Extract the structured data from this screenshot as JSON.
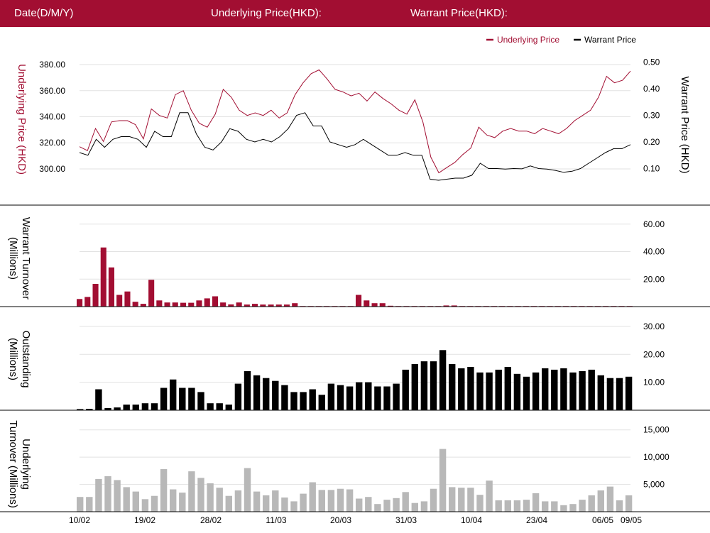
{
  "header": {
    "date_label": "Date(D/M/Y)",
    "underlying_label": "Underlying Price(HKD):",
    "warrant_label": "Warrant Price(HKD):"
  },
  "colors": {
    "header_bg": "#a20e32",
    "underlying": "#a20e32",
    "warrant": "#000000",
    "underlying_turnover": "#b8b8b8",
    "grid": "#e2e2e2"
  },
  "chart_data": [
    {
      "type": "line",
      "title": "",
      "legend": {
        "placement": "top-right",
        "entries": [
          "Underlying Price",
          "Warrant Price"
        ]
      },
      "x_tick_labels": [
        "10/02",
        "19/02",
        "28/02",
        "11/03",
        "20/03",
        "31/03",
        "10/04",
        "23/04",
        "06/05",
        "09/05"
      ],
      "left_axis": {
        "label": "Underlying Price (HKD)",
        "ticks": [
          "380.00",
          "360.00",
          "340.00",
          "320.00",
          "300.00"
        ],
        "ylim": [
          288,
          386
        ]
      },
      "right_axis": {
        "label": "Warrant  Price (HKD)",
        "ticks": [
          "0.50",
          "0.40",
          "0.30",
          "0.20",
          "0.10"
        ],
        "ylim": [
          0.04,
          0.52
        ]
      },
      "grid": true,
      "series": [
        {
          "name": "Underlying Price",
          "axis": "left",
          "values": [
            317,
            314,
            331,
            321,
            336,
            337,
            337,
            334,
            323,
            346,
            341,
            339,
            357,
            360,
            345,
            335,
            332,
            342,
            361,
            355,
            345,
            341,
            343,
            341,
            345,
            339,
            343,
            357,
            366,
            373,
            376,
            369,
            361,
            359,
            356,
            358,
            352,
            359,
            354,
            350,
            345,
            342,
            353,
            336,
            309,
            297,
            301,
            305,
            311,
            316,
            332,
            326,
            324,
            329,
            331,
            329,
            329,
            327,
            331,
            329,
            327,
            331,
            337,
            341,
            345,
            355,
            371,
            366,
            368,
            375
          ],
          "points_x": [
            0,
            1,
            2,
            3,
            4,
            5,
            6,
            7,
            8,
            9,
            10,
            11,
            12,
            13,
            14,
            15,
            16,
            17,
            18,
            19,
            20,
            21,
            22,
            23,
            24,
            25,
            26,
            27,
            28,
            29,
            30,
            31,
            32,
            33,
            34,
            35,
            36,
            37,
            38,
            39,
            40,
            41,
            42,
            43,
            44,
            45,
            46,
            47,
            48,
            49,
            50,
            51,
            52,
            53,
            54,
            55,
            56,
            57,
            58,
            59,
            60,
            61,
            62,
            63,
            64,
            65,
            66,
            67,
            68,
            69
          ]
        },
        {
          "name": "Warrant Price",
          "axis": "right",
          "values": [
            0.16,
            0.15,
            0.21,
            0.18,
            0.21,
            0.22,
            0.22,
            0.21,
            0.18,
            0.24,
            0.22,
            0.22,
            0.31,
            0.31,
            0.23,
            0.18,
            0.17,
            0.2,
            0.25,
            0.24,
            0.21,
            0.2,
            0.21,
            0.2,
            0.22,
            0.25,
            0.3,
            0.31,
            0.26,
            0.26,
            0.2,
            0.19,
            0.18,
            0.19,
            0.21,
            0.19,
            0.17,
            0.15,
            0.15,
            0.16,
            0.15,
            0.15,
            0.06,
            0.056,
            0.06,
            0.064,
            0.064,
            0.075,
            0.12,
            0.1,
            0.1,
            0.098,
            0.1,
            0.099,
            0.11,
            0.1,
            0.098,
            0.093,
            0.086,
            0.09,
            0.1,
            0.12,
            0.14,
            0.16,
            0.175,
            0.175,
            0.19
          ],
          "points_x": [
            0,
            1,
            2,
            3,
            4,
            5,
            6,
            7,
            8,
            9,
            10,
            11,
            12,
            13,
            14,
            15,
            16,
            17,
            18,
            19,
            20,
            21,
            22,
            23,
            24,
            25,
            26,
            27,
            28,
            29,
            30,
            31,
            32,
            33,
            34,
            35,
            36,
            37,
            38,
            39,
            40,
            41,
            42,
            43,
            44,
            45,
            46,
            47,
            48,
            49,
            50,
            51,
            52,
            53,
            54,
            55,
            56,
            57,
            58,
            59,
            60,
            61,
            62,
            63,
            64,
            65,
            66
          ]
        }
      ]
    },
    {
      "type": "bar",
      "ylabel": "Warrant  Turnover (Millions)",
      "ticks": [
        "60.00",
        "40.00",
        "20.00"
      ],
      "ylim": [
        0,
        64
      ],
      "grid": true,
      "values": [
        5.5,
        7,
        16.5,
        43,
        28.5,
        8.5,
        11,
        3.5,
        2,
        19.5,
        4.5,
        3,
        3,
        2.8,
        2.8,
        4.5,
        6,
        7.5,
        3,
        1.6,
        3,
        1.5,
        2,
        1.5,
        1.5,
        1.5,
        1.5,
        2.5,
        0.4,
        0.4,
        0.4,
        0.4,
        0.4,
        0.4,
        0.4,
        8.5,
        4.5,
        2.5,
        2.5,
        0.6,
        0.4,
        0.4,
        0.4,
        0.4,
        0.4,
        0.4,
        0.8,
        0.8,
        0.4,
        0.4,
        0.4,
        0.4,
        0.4,
        0.4,
        0.4,
        0.4,
        0.4,
        0.4,
        0.4,
        0.4,
        0.4,
        0.4,
        0.4,
        0.4,
        0.4,
        0.4,
        0.4,
        0.4,
        0.4,
        0.4
      ]
    },
    {
      "type": "bar",
      "ylabel": "Outstanding (Millions)",
      "ticks": [
        "30.00",
        "20.00",
        "10.00"
      ],
      "ylim": [
        0,
        32
      ],
      "grid": true,
      "values": [
        0.4,
        0.5,
        7.5,
        0.8,
        1,
        2,
        2,
        2.5,
        2.5,
        8,
        11,
        8,
        8,
        6.5,
        2.5,
        2.5,
        2,
        9.5,
        14,
        12.5,
        11.5,
        10.5,
        9,
        6.5,
        6.5,
        7.5,
        5.5,
        9.5,
        9,
        8.5,
        10,
        10,
        8.5,
        8.5,
        9.5,
        14.5,
        16.5,
        17.5,
        17.5,
        21.5,
        16.5,
        15,
        15.5,
        13.5,
        13.5,
        14.5,
        15.5,
        13,
        12,
        13.5,
        15,
        14.5,
        15,
        13.5,
        14,
        14.5,
        12.5,
        11.5,
        11.5,
        12
      ]
    },
    {
      "type": "bar",
      "ylabel": "Underlying Turnover (Millions)",
      "ticks": [
        "15,000",
        "10,000",
        "5,000"
      ],
      "ylim": [
        0,
        16000
      ],
      "grid": true,
      "values": [
        2700,
        2700,
        6000,
        6500,
        5800,
        4500,
        3700,
        2300,
        2900,
        7800,
        4100,
        3500,
        7400,
        6200,
        5200,
        4400,
        2900,
        3900,
        8000,
        3700,
        3000,
        3900,
        2600,
        1900,
        3300,
        5400,
        4000,
        4000,
        4200,
        4100,
        2400,
        2700,
        1400,
        2200,
        2500,
        3600,
        1600,
        1900,
        4200,
        11500,
        4500,
        4400,
        4400,
        3100,
        5700,
        2100,
        2100,
        2100,
        2200,
        3400,
        1900,
        1900,
        1200,
        1400,
        2200,
        3000,
        3900,
        4600,
        2100,
        3000
      ]
    }
  ]
}
